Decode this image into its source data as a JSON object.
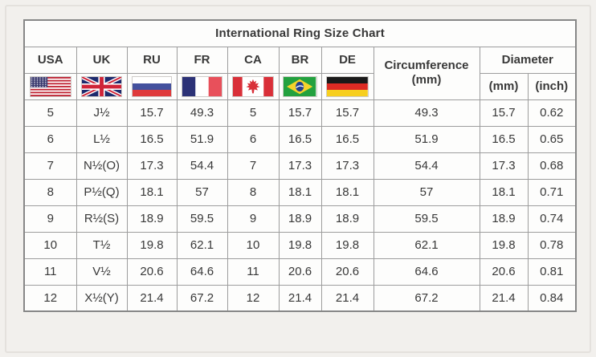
{
  "title": "International Ring Size Chart",
  "chart_data": {
    "type": "table",
    "title": "International Ring Size Chart",
    "columns": [
      "USA",
      "UK",
      "RU",
      "FR",
      "CA",
      "BR",
      "DE",
      "Circumference (mm)",
      "Diameter (mm)",
      "Diameter (inch)"
    ],
    "rows": [
      [
        "5",
        "J½",
        "15.7",
        "49.3",
        "5",
        "15.7",
        "15.7",
        "49.3",
        "15.7",
        "0.62"
      ],
      [
        "6",
        "L½",
        "16.5",
        "51.9",
        "6",
        "16.5",
        "16.5",
        "51.9",
        "16.5",
        "0.65"
      ],
      [
        "7",
        "N½(O)",
        "17.3",
        "54.4",
        "7",
        "17.3",
        "17.3",
        "54.4",
        "17.3",
        "0.68"
      ],
      [
        "8",
        "P½(Q)",
        "18.1",
        "57",
        "8",
        "18.1",
        "18.1",
        "57",
        "18.1",
        "0.71"
      ],
      [
        "9",
        "R½(S)",
        "18.9",
        "59.5",
        "9",
        "18.9",
        "18.9",
        "59.5",
        "18.9",
        "0.74"
      ],
      [
        "10",
        "T½",
        "19.8",
        "62.1",
        "10",
        "19.8",
        "19.8",
        "62.1",
        "19.8",
        "0.78"
      ],
      [
        "11",
        "V½",
        "20.6",
        "64.6",
        "11",
        "20.6",
        "20.6",
        "64.6",
        "20.6",
        "0.81"
      ],
      [
        "12",
        "X½(Y)",
        "21.4",
        "67.2",
        "12",
        "21.4",
        "21.4",
        "67.2",
        "21.4",
        "0.84"
      ]
    ]
  },
  "header": {
    "countries": [
      {
        "label": "USA",
        "flag": "usa-flag"
      },
      {
        "label": "UK",
        "flag": "uk-flag"
      },
      {
        "label": "RU",
        "flag": "russia-flag"
      },
      {
        "label": "FR",
        "flag": "france-flag"
      },
      {
        "label": "CA",
        "flag": "canada-flag"
      },
      {
        "label": "BR",
        "flag": "brazil-flag"
      },
      {
        "label": "DE",
        "flag": "germany-flag"
      }
    ],
    "circumference": {
      "label": "Circumference",
      "unit": "(mm)"
    },
    "diameter": {
      "label": "Diameter",
      "mm": "(mm)",
      "inch": "(inch)"
    }
  },
  "colors": {
    "page_background": "#f2f0ed",
    "table_border": "#9d9d9d",
    "text": "#383838"
  }
}
